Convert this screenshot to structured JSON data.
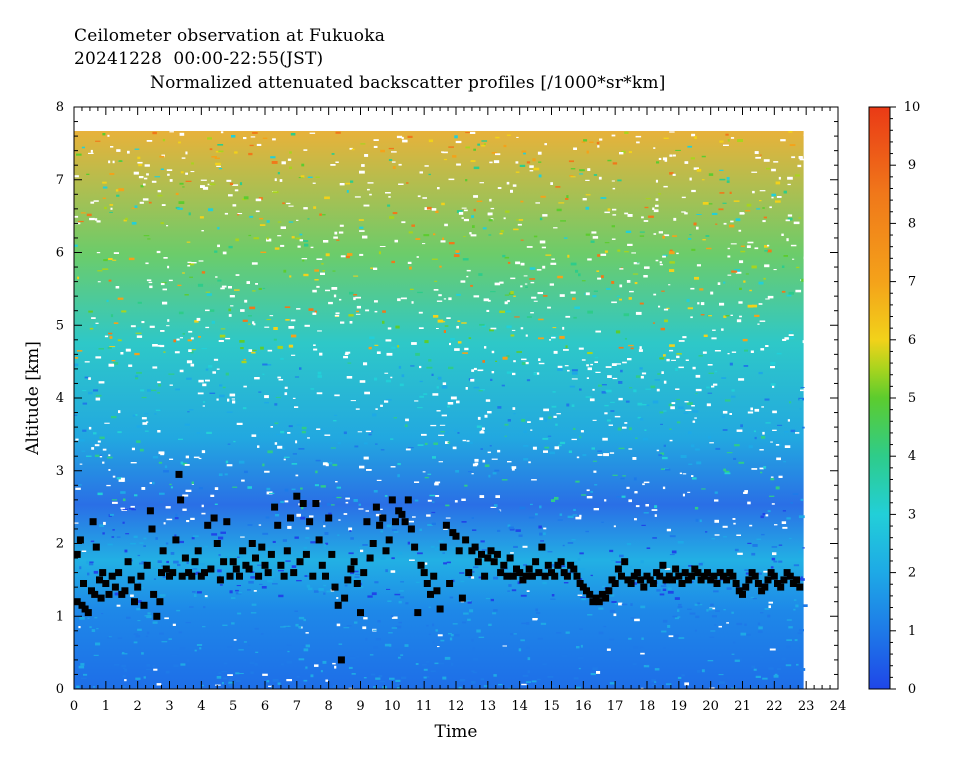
{
  "header": {
    "line1": "Ceilometer observation at Fukuoka",
    "line2": "20241228  00:00-22:55(JST)",
    "line3": "Normalized attenuated backscatter profiles [/1000*sr*km]"
  },
  "chart_data": {
    "type": "heatmap",
    "title": "Normalized attenuated backscatter profiles [/1000*sr*km]",
    "xlabel": "Time",
    "ylabel": "Altitude [km]",
    "xlim": [
      0,
      24
    ],
    "ylim": [
      0,
      8
    ],
    "data_time_range": [
      0,
      22.92
    ],
    "data_altitude_max": 7.67,
    "x_ticks": [
      "0",
      "1",
      "2",
      "3",
      "4",
      "5",
      "6",
      "7",
      "8",
      "9",
      "10",
      "11",
      "12",
      "13",
      "14",
      "15",
      "16",
      "17",
      "18",
      "19",
      "20",
      "21",
      "22",
      "23",
      "24"
    ],
    "y_ticks": [
      "0",
      "1",
      "2",
      "3",
      "4",
      "5",
      "6",
      "7",
      "8"
    ],
    "colorbar": {
      "range": [
        0,
        10
      ],
      "ticks": [
        "0",
        "1",
        "2",
        "3",
        "4",
        "5",
        "6",
        "7",
        "8",
        "9",
        "10"
      ],
      "colors": [
        "#1f46e8",
        "#1e7ae8",
        "#1ea9e6",
        "#22cfd8",
        "#2ecc8a",
        "#5ccc2e",
        "#a8d41e",
        "#f2d21a",
        "#f4a21a",
        "#f0781a",
        "#ea3a16"
      ]
    },
    "background_field_description_levels": {
      "surface_0_to_1km": 1.0,
      "boundary_layer_1_to_2km": 1.8,
      "above_3km": 2.5,
      "above_5km": 4.5
    },
    "cloud_base_series": {
      "name": "",
      "marker": "black square",
      "points": [
        [
          0.1,
          1.2
        ],
        [
          0.1,
          1.85
        ],
        [
          0.2,
          2.05
        ],
        [
          0.25,
          1.15
        ],
        [
          0.3,
          1.45
        ],
        [
          0.35,
          1.1
        ],
        [
          0.45,
          1.05
        ],
        [
          0.55,
          1.35
        ],
        [
          0.6,
          2.3
        ],
        [
          0.65,
          1.3
        ],
        [
          0.7,
          1.95
        ],
        [
          0.8,
          1.5
        ],
        [
          0.85,
          1.25
        ],
        [
          0.9,
          1.6
        ],
        [
          1.0,
          1.45
        ],
        [
          1.1,
          1.3
        ],
        [
          1.2,
          1.55
        ],
        [
          1.3,
          1.4
        ],
        [
          1.4,
          1.6
        ],
        [
          1.5,
          1.3
        ],
        [
          1.6,
          1.35
        ],
        [
          1.7,
          1.75
        ],
        [
          1.8,
          1.5
        ],
        [
          1.9,
          1.2
        ],
        [
          2.0,
          1.4
        ],
        [
          2.1,
          1.55
        ],
        [
          2.2,
          1.15
        ],
        [
          2.3,
          1.7
        ],
        [
          2.4,
          2.45
        ],
        [
          2.45,
          2.2
        ],
        [
          2.5,
          1.3
        ],
        [
          2.6,
          1.0
        ],
        [
          2.7,
          1.2
        ],
        [
          2.75,
          1.6
        ],
        [
          2.8,
          1.9
        ],
        [
          2.9,
          1.65
        ],
        [
          3.0,
          1.55
        ],
        [
          3.1,
          1.6
        ],
        [
          3.2,
          2.05
        ],
        [
          3.3,
          2.95
        ],
        [
          3.35,
          2.6
        ],
        [
          3.4,
          1.55
        ],
        [
          3.5,
          1.8
        ],
        [
          3.6,
          1.6
        ],
        [
          3.7,
          1.55
        ],
        [
          3.8,
          1.75
        ],
        [
          3.9,
          1.9
        ],
        [
          4.0,
          1.55
        ],
        [
          4.1,
          1.6
        ],
        [
          4.2,
          2.25
        ],
        [
          4.3,
          1.65
        ],
        [
          4.4,
          2.35
        ],
        [
          4.5,
          2.0
        ],
        [
          4.6,
          1.5
        ],
        [
          4.7,
          1.75
        ],
        [
          4.8,
          2.3
        ],
        [
          4.9,
          1.55
        ],
        [
          5.0,
          1.75
        ],
        [
          5.1,
          1.65
        ],
        [
          5.2,
          1.55
        ],
        [
          5.3,
          1.9
        ],
        [
          5.4,
          1.7
        ],
        [
          5.5,
          1.65
        ],
        [
          5.6,
          2.0
        ],
        [
          5.7,
          1.8
        ],
        [
          5.8,
          1.55
        ],
        [
          5.9,
          1.95
        ],
        [
          6.0,
          1.7
        ],
        [
          6.1,
          1.6
        ],
        [
          6.2,
          1.85
        ],
        [
          6.3,
          2.5
        ],
        [
          6.4,
          2.25
        ],
        [
          6.5,
          1.7
        ],
        [
          6.6,
          1.55
        ],
        [
          6.7,
          1.9
        ],
        [
          6.8,
          2.35
        ],
        [
          6.9,
          1.6
        ],
        [
          7.0,
          2.65
        ],
        [
          7.1,
          1.75
        ],
        [
          7.2,
          2.55
        ],
        [
          7.3,
          1.85
        ],
        [
          7.4,
          2.3
        ],
        [
          7.5,
          1.55
        ],
        [
          7.6,
          2.55
        ],
        [
          7.7,
          2.05
        ],
        [
          7.8,
          1.7
        ],
        [
          7.9,
          1.55
        ],
        [
          8.0,
          2.35
        ],
        [
          8.1,
          1.85
        ],
        [
          8.2,
          1.4
        ],
        [
          8.3,
          1.15
        ],
        [
          8.4,
          0.4
        ],
        [
          8.5,
          1.25
        ],
        [
          8.6,
          1.5
        ],
        [
          8.7,
          1.65
        ],
        [
          8.8,
          1.75
        ],
        [
          8.9,
          1.45
        ],
        [
          9.0,
          1.05
        ],
        [
          9.1,
          1.6
        ],
        [
          9.2,
          2.3
        ],
        [
          9.3,
          1.8
        ],
        [
          9.4,
          2.0
        ],
        [
          9.5,
          2.5
        ],
        [
          9.6,
          2.25
        ],
        [
          9.7,
          2.35
        ],
        [
          9.8,
          1.9
        ],
        [
          9.9,
          2.05
        ],
        [
          10.0,
          2.6
        ],
        [
          10.1,
          2.3
        ],
        [
          10.2,
          2.45
        ],
        [
          10.3,
          2.4
        ],
        [
          10.4,
          2.3
        ],
        [
          10.5,
          2.6
        ],
        [
          10.6,
          2.2
        ],
        [
          10.7,
          1.95
        ],
        [
          10.8,
          1.05
        ],
        [
          10.9,
          1.7
        ],
        [
          11.0,
          1.6
        ],
        [
          11.1,
          1.45
        ],
        [
          11.2,
          1.3
        ],
        [
          11.3,
          1.55
        ],
        [
          11.4,
          1.35
        ],
        [
          11.5,
          1.1
        ],
        [
          11.6,
          1.95
        ],
        [
          11.7,
          2.25
        ],
        [
          11.8,
          1.45
        ],
        [
          11.9,
          2.15
        ],
        [
          12.0,
          2.1
        ],
        [
          12.1,
          1.9
        ],
        [
          12.2,
          1.25
        ],
        [
          12.3,
          2.05
        ],
        [
          12.4,
          1.6
        ],
        [
          12.5,
          1.9
        ],
        [
          12.6,
          1.95
        ],
        [
          12.7,
          1.75
        ],
        [
          12.8,
          1.85
        ],
        [
          12.9,
          1.55
        ],
        [
          13.0,
          1.8
        ],
        [
          13.1,
          1.9
        ],
        [
          13.2,
          1.75
        ],
        [
          13.3,
          1.85
        ],
        [
          13.4,
          1.6
        ],
        [
          13.5,
          1.7
        ],
        [
          13.6,
          1.55
        ],
        [
          13.7,
          1.8
        ],
        [
          13.8,
          1.55
        ],
        [
          13.9,
          1.65
        ],
        [
          14.0,
          1.6
        ],
        [
          14.1,
          1.5
        ],
        [
          14.2,
          1.55
        ],
        [
          14.3,
          1.65
        ],
        [
          14.4,
          1.55
        ],
        [
          14.5,
          1.75
        ],
        [
          14.6,
          1.6
        ],
        [
          14.7,
          1.95
        ],
        [
          14.8,
          1.55
        ],
        [
          14.9,
          1.7
        ],
        [
          15.0,
          1.6
        ],
        [
          15.1,
          1.55
        ],
        [
          15.2,
          1.7
        ],
        [
          15.3,
          1.75
        ],
        [
          15.4,
          1.6
        ],
        [
          15.5,
          1.55
        ],
        [
          15.6,
          1.7
        ],
        [
          15.7,
          1.65
        ],
        [
          15.8,
          1.55
        ],
        [
          15.9,
          1.45
        ],
        [
          16.0,
          1.4
        ],
        [
          16.1,
          1.35
        ],
        [
          16.2,
          1.3
        ],
        [
          16.3,
          1.2
        ],
        [
          16.4,
          1.25
        ],
        [
          16.5,
          1.2
        ],
        [
          16.6,
          1.3
        ],
        [
          16.7,
          1.25
        ],
        [
          16.8,
          1.35
        ],
        [
          16.9,
          1.5
        ],
        [
          17.0,
          1.45
        ],
        [
          17.1,
          1.65
        ],
        [
          17.2,
          1.55
        ],
        [
          17.3,
          1.75
        ],
        [
          17.4,
          1.5
        ],
        [
          17.5,
          1.45
        ],
        [
          17.6,
          1.55
        ],
        [
          17.7,
          1.6
        ],
        [
          17.8,
          1.5
        ],
        [
          17.9,
          1.4
        ],
        [
          18.0,
          1.55
        ],
        [
          18.1,
          1.5
        ],
        [
          18.2,
          1.45
        ],
        [
          18.3,
          1.6
        ],
        [
          18.4,
          1.55
        ],
        [
          18.5,
          1.7
        ],
        [
          18.6,
          1.5
        ],
        [
          18.7,
          1.55
        ],
        [
          18.8,
          1.5
        ],
        [
          18.9,
          1.65
        ],
        [
          19.0,
          1.55
        ],
        [
          19.1,
          1.45
        ],
        [
          19.2,
          1.6
        ],
        [
          19.3,
          1.5
        ],
        [
          19.4,
          1.55
        ],
        [
          19.5,
          1.65
        ],
        [
          19.6,
          1.6
        ],
        [
          19.7,
          1.5
        ],
        [
          19.8,
          1.55
        ],
        [
          19.9,
          1.6
        ],
        [
          20.0,
          1.5
        ],
        [
          20.1,
          1.55
        ],
        [
          20.2,
          1.45
        ],
        [
          20.3,
          1.6
        ],
        [
          20.4,
          1.55
        ],
        [
          20.5,
          1.5
        ],
        [
          20.6,
          1.6
        ],
        [
          20.7,
          1.55
        ],
        [
          20.8,
          1.45
        ],
        [
          20.9,
          1.35
        ],
        [
          21.0,
          1.3
        ],
        [
          21.1,
          1.4
        ],
        [
          21.2,
          1.5
        ],
        [
          21.3,
          1.6
        ],
        [
          21.4,
          1.55
        ],
        [
          21.5,
          1.45
        ],
        [
          21.6,
          1.35
        ],
        [
          21.7,
          1.4
        ],
        [
          21.8,
          1.5
        ],
        [
          21.9,
          1.6
        ],
        [
          22.0,
          1.55
        ],
        [
          22.1,
          1.45
        ],
        [
          22.2,
          1.4
        ],
        [
          22.3,
          1.5
        ],
        [
          22.4,
          1.6
        ],
        [
          22.5,
          1.55
        ],
        [
          22.6,
          1.45
        ],
        [
          22.7,
          1.5
        ],
        [
          22.8,
          1.4
        ]
      ]
    }
  }
}
